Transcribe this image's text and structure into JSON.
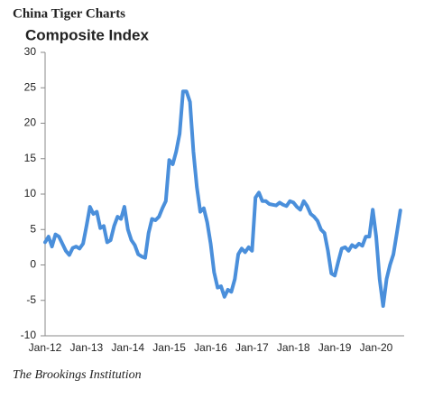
{
  "chart_data": {
    "type": "line",
    "title": "China Tiger Charts",
    "subtitle": "Composite Index",
    "source": "The Brookings Institution",
    "categories": [
      "Jan-12",
      null,
      null,
      null,
      null,
      null,
      null,
      null,
      null,
      null,
      null,
      null,
      "Jan-13",
      null,
      null,
      null,
      null,
      null,
      null,
      null,
      null,
      null,
      null,
      null,
      "Jan-14",
      null,
      null,
      null,
      null,
      null,
      null,
      null,
      null,
      null,
      null,
      null,
      "Jan-15",
      null,
      null,
      null,
      null,
      null,
      null,
      null,
      null,
      null,
      null,
      null,
      "Jan-16",
      null,
      null,
      null,
      null,
      null,
      null,
      null,
      null,
      null,
      null,
      null,
      "Jan-17",
      null,
      null,
      null,
      null,
      null,
      null,
      null,
      null,
      null,
      null,
      null,
      "Jan-18",
      null,
      null,
      null,
      null,
      null,
      null,
      null,
      null,
      null,
      null,
      null,
      "Jan-19",
      null,
      null,
      null,
      null,
      null,
      null,
      null,
      null,
      null,
      null,
      null,
      "Jan-20",
      null,
      null,
      null,
      null,
      null,
      null,
      null
    ],
    "series": [
      {
        "name": "Composite Index",
        "color": "#4a8fdb",
        "values": [
          3.2,
          4,
          2.6,
          4.3,
          4,
          3,
          2,
          1.4,
          2.4,
          2.6,
          2.3,
          3,
          5.5,
          8.2,
          7.2,
          7.5,
          5.2,
          5.5,
          3.2,
          3.5,
          5.5,
          6.8,
          6.5,
          8.2,
          5,
          3.5,
          2.8,
          1.5,
          1.2,
          1,
          4.5,
          6.5,
          6.3,
          6.8,
          8,
          9,
          14.8,
          14.2,
          16,
          18.5,
          24.5,
          24.5,
          23,
          16,
          11,
          7.5,
          8,
          6,
          3,
          -1,
          -3.2,
          -3,
          -4.5,
          -3.5,
          -3.8,
          -2,
          1.5,
          2.3,
          1.8,
          2.5,
          2,
          9.5,
          10.2,
          9,
          9,
          8.6,
          8.5,
          8.4,
          8.8,
          8.5,
          8.3,
          9,
          8.8,
          8.2,
          7.8,
          9,
          8.3,
          7.2,
          6.8,
          6.2,
          5,
          4.5,
          2,
          -1.2,
          -1.5,
          0.5,
          2.3,
          2.5,
          2,
          2.8,
          2.5,
          3,
          2.7,
          4,
          4,
          7.8,
          4,
          -2,
          -5.8,
          -2,
          0,
          1.5,
          4.5,
          7.7
        ]
      }
    ],
    "ylim": [
      -10,
      30
    ],
    "yticks": [
      30,
      25,
      20,
      15,
      10,
      5,
      0,
      -5,
      -10
    ]
  }
}
